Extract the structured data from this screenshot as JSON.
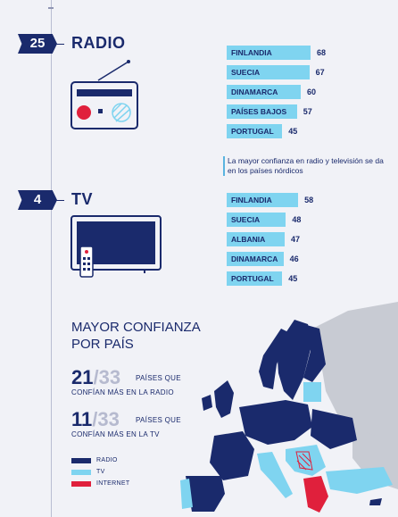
{
  "radio": {
    "rank": "25",
    "title": "RADIO"
  },
  "tv": {
    "rank": "4",
    "title": "TV"
  },
  "note": "La mayor confianza en radio y televisión se da en los países nórdicos",
  "map": {
    "title_line1": "MAYOR CONFIANZA",
    "title_line2": "POR PAÍS",
    "stat_radio": {
      "count": "21",
      "total": "/33",
      "line1": "PAÍSES QUE",
      "line2": "CONFÍAN MÁS EN LA RADIO"
    },
    "stat_tv": {
      "count": "11",
      "total": "/33",
      "line1": "PAÍSES QUE",
      "line2": "CONFÍAN MÁS EN LA TV"
    }
  },
  "legend": [
    {
      "label": "RADIO",
      "color": "#1a2a6c"
    },
    {
      "label": "TV",
      "color": "#7fd4f0"
    },
    {
      "label": "INTERNET",
      "color": "#e0203c"
    }
  ],
  "chart_data": [
    {
      "type": "bar",
      "title": "RADIO",
      "categories": [
        "FINLANDIA",
        "SUECIA",
        "DINAMARCA",
        "PAÍSES BAJOS",
        "PORTUGAL"
      ],
      "values": [
        68,
        67,
        60,
        57,
        45
      ],
      "orientation": "horizontal"
    },
    {
      "type": "bar",
      "title": "TV",
      "categories": [
        "FINLANDIA",
        "SUECIA",
        "ALBANIA",
        "DINAMARCA",
        "PORTUGAL"
      ],
      "values": [
        58,
        48,
        47,
        46,
        45
      ],
      "orientation": "horizontal"
    }
  ]
}
